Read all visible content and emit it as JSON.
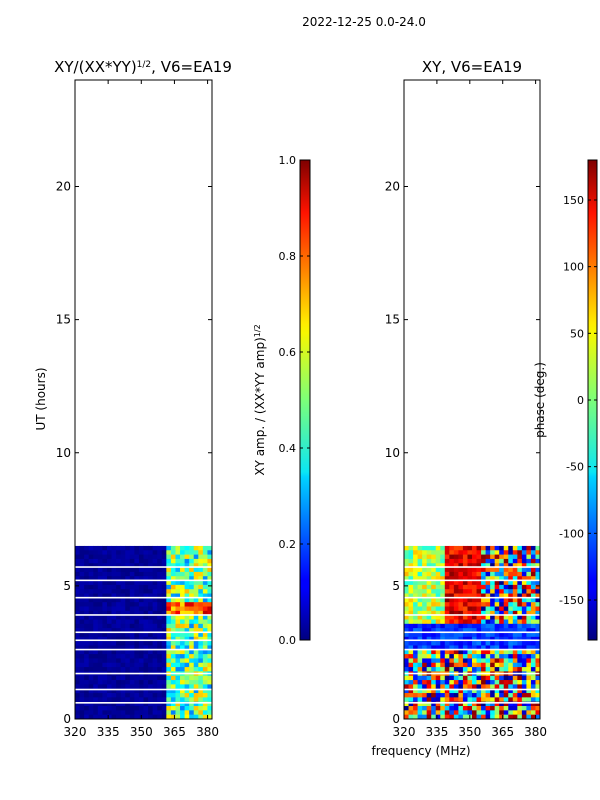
{
  "figure": {
    "suptitle": "2022-12-25 0.0-24.0",
    "xlabel": "frequency (MHz)"
  },
  "chart_data": [
    {
      "type": "heatmap",
      "title_main": "XY/(XX*YY)",
      "title_exp": "1/2",
      "title_rest": ", V6=EA19",
      "ylabel": "UT (hours)",
      "xlim": [
        320,
        382
      ],
      "ylim": [
        0,
        24
      ],
      "x_ticks": [
        320,
        335,
        350,
        365,
        380
      ],
      "y_ticks": [
        0,
        5,
        10,
        15,
        20
      ],
      "data_extent_hours": [
        0,
        6.5
      ],
      "colorbar": {
        "label_main": "XY amp. / (XX*YY amp)",
        "label_exp": "1/2",
        "range": [
          0.0,
          1.0
        ],
        "ticks": [
          "0.0",
          "0.2",
          "0.4",
          "0.6",
          "0.8",
          "1.0"
        ]
      }
    },
    {
      "type": "heatmap",
      "title": "XY, V6=EA19",
      "ylabel": "",
      "xlim": [
        320,
        382
      ],
      "ylim": [
        0,
        24
      ],
      "x_ticks": [
        320,
        335,
        350,
        365,
        380
      ],
      "y_ticks": [
        0,
        5,
        10,
        15,
        20
      ],
      "data_extent_hours": [
        0,
        6.5
      ],
      "colorbar": {
        "label": "phase (deg.)",
        "range": [
          -180,
          180
        ],
        "ticks": [
          -150,
          -100,
          -50,
          0,
          50,
          100,
          150
        ]
      }
    }
  ]
}
